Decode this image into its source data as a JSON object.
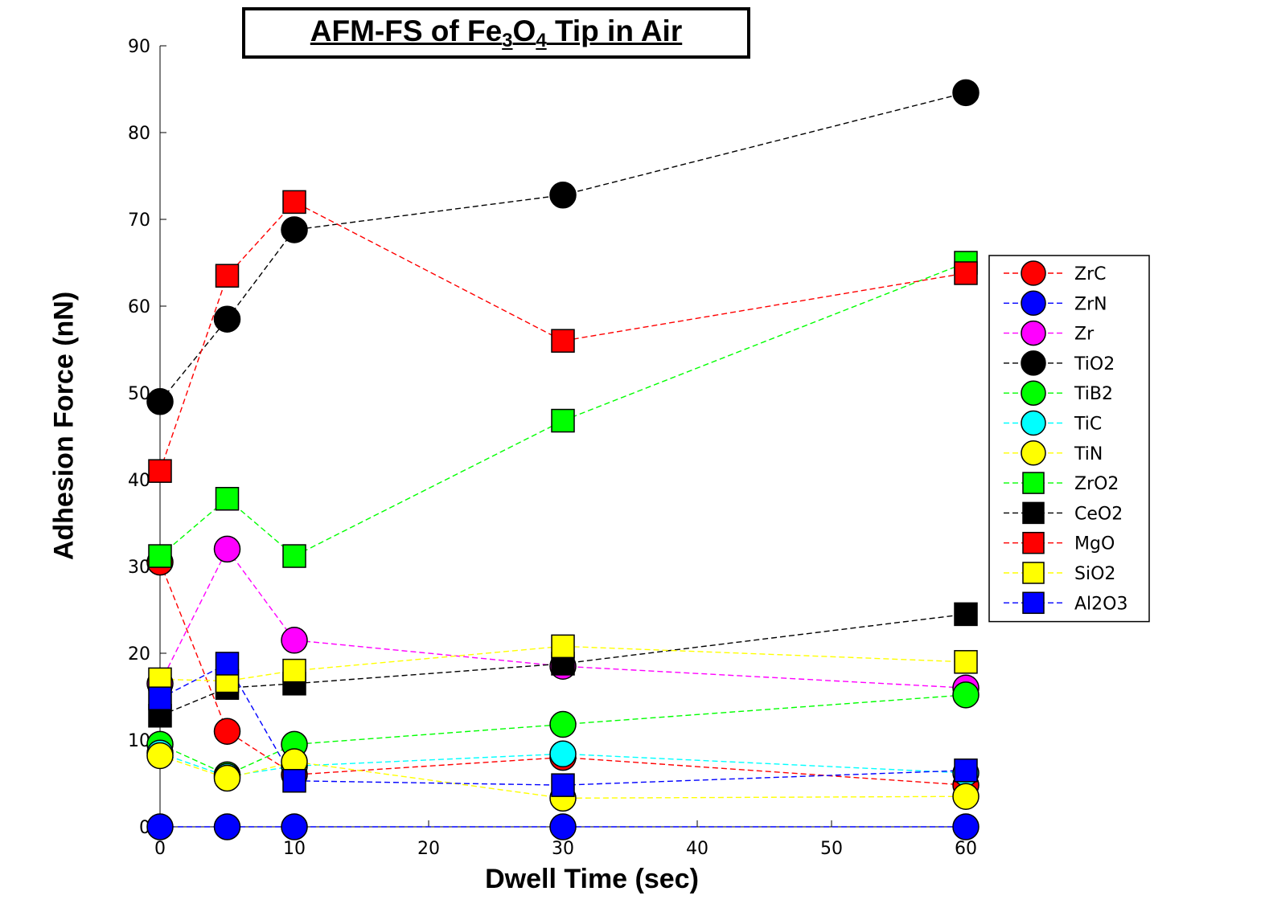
{
  "chart_data": {
    "type": "line",
    "title": {
      "pre": "AFM-FS of Fe",
      "sub1": "3",
      "mid": "O",
      "sub2": "4",
      "post": " Tip in Air"
    },
    "xlabel": "Dwell Time (sec)",
    "ylabel": "Adhesion Force (nN)",
    "xlim": [
      0,
      60
    ],
    "ylim": [
      0,
      90
    ],
    "xticks": [
      0,
      10,
      20,
      30,
      40,
      50,
      60
    ],
    "yticks": [
      0,
      10,
      20,
      30,
      40,
      50,
      60,
      70,
      80,
      90
    ],
    "x": [
      0,
      5,
      10,
      30,
      60
    ],
    "grid": false,
    "legend_position": "right",
    "series": [
      {
        "name": "ZrC",
        "marker": "circle",
        "color": "#ff0000",
        "values": [
          30.5,
          11,
          6,
          8,
          4.8
        ]
      },
      {
        "name": "ZrN",
        "marker": "circle",
        "color": "#0000ff",
        "values": [
          0,
          0,
          0,
          0,
          0
        ]
      },
      {
        "name": "Zr",
        "marker": "circle",
        "color": "#ff00ff",
        "values": [
          16.5,
          32,
          21.5,
          18.5,
          16
        ]
      },
      {
        "name": "TiO2",
        "marker": "circle",
        "color": "#000000",
        "values": [
          49,
          58.5,
          68.8,
          72.8,
          84.6
        ]
      },
      {
        "name": "TiB2",
        "marker": "circle",
        "color": "#00ff00",
        "values": [
          9.5,
          6,
          9.5,
          11.8,
          15.2
        ]
      },
      {
        "name": "TiC",
        "marker": "circle",
        "color": "#00ffff",
        "values": [
          8.5,
          5.8,
          7,
          8.4,
          6.2
        ]
      },
      {
        "name": "TiN",
        "marker": "circle",
        "color": "#ffff00",
        "values": [
          8.2,
          5.6,
          7.5,
          3.3,
          3.5
        ]
      },
      {
        "name": "ZrO2",
        "marker": "square",
        "color": "#00ff00",
        "values": [
          31.2,
          37.8,
          31.2,
          46.8,
          65
        ]
      },
      {
        "name": "CeO2",
        "marker": "square",
        "color": "#000000",
        "values": [
          12.8,
          16,
          16.5,
          18.8,
          24.5
        ]
      },
      {
        "name": "MgO",
        "marker": "square",
        "color": "#ff0000",
        "values": [
          41,
          63.5,
          72,
          56,
          63.8
        ]
      },
      {
        "name": "SiO2",
        "marker": "square",
        "color": "#ffff00",
        "values": [
          17,
          16.8,
          18,
          20.8,
          19
        ]
      },
      {
        "name": "Al2O3",
        "marker": "square",
        "color": "#0000ff",
        "values": [
          14.8,
          18.8,
          5.3,
          4.8,
          6.5
        ]
      }
    ]
  }
}
